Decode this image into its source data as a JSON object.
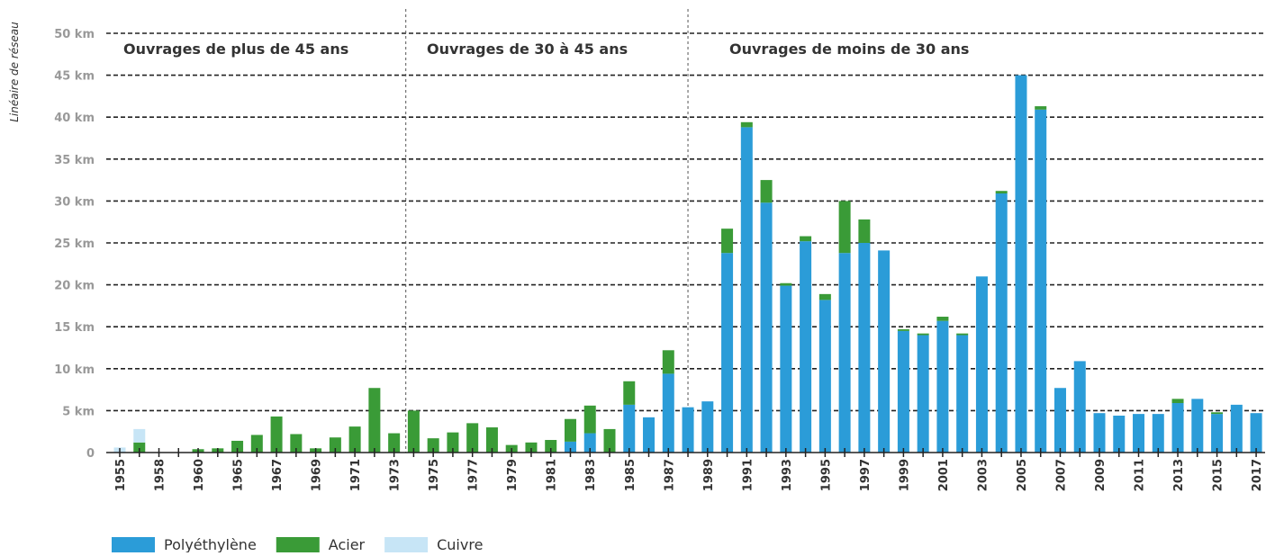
{
  "chart_data": {
    "type": "bar",
    "stacked": true,
    "y_label": "Linéaire de réseau",
    "annotations": [
      "Ouvrages de plus de 45 ans",
      "Ouvrages de 30 à 45 ans",
      "Ouvrages de moins de 30 ans"
    ],
    "categories": [
      "1955",
      null,
      "1958",
      null,
      "1960",
      null,
      "1965",
      null,
      "1967",
      null,
      "1969",
      null,
      "1971",
      null,
      "1973",
      null,
      "1975",
      null,
      "1977",
      null,
      "1979",
      null,
      "1981",
      null,
      "1983",
      null,
      "1985",
      null,
      "1987",
      null,
      "1989",
      null,
      "1991",
      null,
      "1993",
      null,
      "1995",
      null,
      "1997",
      null,
      "1999",
      null,
      "2001",
      null,
      "2003",
      null,
      "2005",
      null,
      "2007",
      null,
      "2009",
      null,
      "2011",
      null,
      "2013",
      null,
      "2015",
      null,
      "2017"
    ],
    "series": [
      {
        "name": "Polyéthylène",
        "color": "#2b9cd8",
        "values": [
          0,
          0,
          0,
          0,
          0,
          0,
          0,
          0,
          0,
          0,
          0,
          0,
          0,
          0,
          0,
          0,
          0,
          0,
          0,
          0,
          0,
          0,
          0,
          1.3,
          2.3,
          0,
          5.7,
          4.2,
          9.4,
          5.4,
          6.1,
          23.8,
          38.8,
          29.8,
          19.9,
          25.2,
          18.2,
          23.8,
          25.0,
          24.1,
          14.5,
          14.0,
          15.7,
          14.0,
          21.0,
          30.9,
          45.0,
          40.9,
          7.7,
          10.9,
          4.7,
          4.4,
          4.6,
          4.6,
          5.9,
          6.4,
          4.6,
          5.7,
          4.7
        ]
      },
      {
        "name": "Acier",
        "color": "#3a9b37",
        "values": [
          0,
          1.2,
          0,
          0,
          0.4,
          0.5,
          1.4,
          2.1,
          4.3,
          2.2,
          0.5,
          1.8,
          3.1,
          7.7,
          2.3,
          5.0,
          1.7,
          2.4,
          3.5,
          3.0,
          0.9,
          1.2,
          1.5,
          2.7,
          3.3,
          2.8,
          2.8,
          0,
          2.8,
          0,
          0,
          2.9,
          0.6,
          2.7,
          0.3,
          0.6,
          0.7,
          6.2,
          2.8,
          0,
          0.2,
          0.2,
          0.5,
          0.2,
          0,
          0.3,
          0,
          0.4,
          0,
          0,
          0,
          0,
          0,
          0,
          0.5,
          0,
          0.2,
          0,
          0
        ]
      },
      {
        "name": "Cuivre",
        "color": "#c7e5f6",
        "values": [
          0.6,
          1.6,
          0,
          0,
          0,
          0,
          0,
          0,
          0,
          0,
          0,
          0,
          0,
          0,
          0,
          0,
          0,
          0,
          0,
          0,
          0,
          0,
          0,
          0,
          0,
          0,
          0,
          0,
          0,
          0,
          0,
          0,
          0,
          0,
          0,
          0,
          0,
          0,
          0,
          0,
          0,
          0,
          0,
          0,
          0,
          0,
          0,
          0,
          0,
          0,
          0,
          0,
          0,
          0,
          0,
          0,
          0,
          0,
          0
        ]
      }
    ],
    "ylim": [
      0,
      50
    ],
    "yticks": [
      0,
      {
        "value": 5,
        "label": "5 km"
      },
      {
        "value": 10,
        "label": "10 km"
      },
      {
        "value": 15,
        "label": "15 km"
      },
      {
        "value": 20,
        "label": "20 km"
      },
      {
        "value": 25,
        "label": "25 km"
      },
      {
        "value": 30,
        "label": "30 km"
      },
      {
        "value": 35,
        "label": "35 km"
      },
      {
        "value": 40,
        "label": "40 km"
      },
      {
        "value": 45,
        "label": "45 km"
      },
      {
        "value": 50,
        "label": "50 km"
      }
    ],
    "grid": true,
    "legend": "bottom-left"
  }
}
